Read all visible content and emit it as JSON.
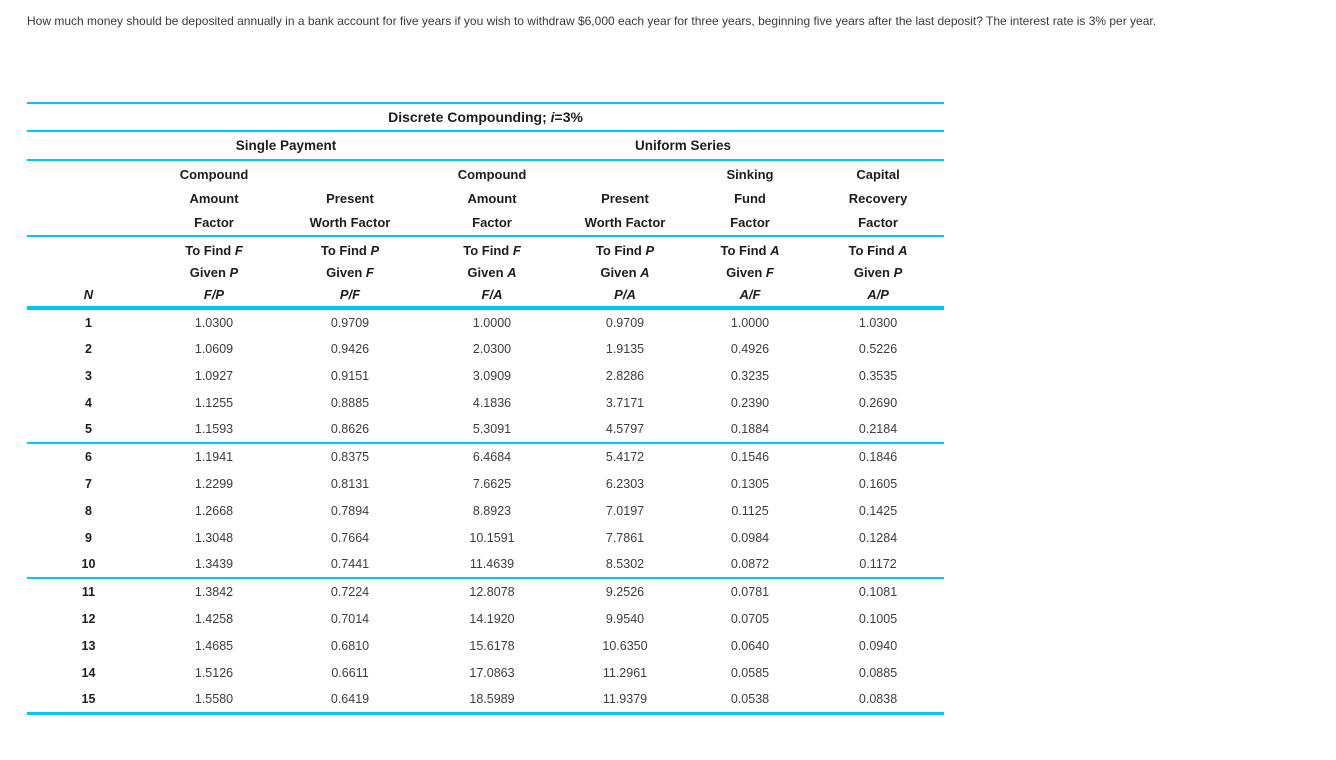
{
  "question": "How much money should be deposited annually in a bank account for five years if you wish to withdraw $6,000 each year for three years, beginning five years after the last deposit? The interest rate is 3% per year.",
  "colors": {
    "rule": "#00c8f0"
  },
  "table": {
    "title": {
      "prefix": "Discrete Compounding; ",
      "var": "i",
      "suffix": "=3%"
    },
    "groups": [
      "Single Payment",
      "Uniform Series"
    ],
    "columns": [
      {
        "symbol": "N",
        "factor": []
      },
      {
        "symbol": "F/P",
        "factor": [
          "Compound",
          "Amount",
          "Factor"
        ],
        "find1": {
          "text": "To Find ",
          "var": "F"
        },
        "find2": {
          "text": "Given ",
          "var": "P"
        }
      },
      {
        "symbol": "P/F",
        "factor": [
          "Present",
          "Worth Factor"
        ],
        "find1": {
          "text": "To Find ",
          "var": "P"
        },
        "find2": {
          "text": "Given ",
          "var": "F"
        }
      },
      {
        "symbol": "F/A",
        "factor": [
          "Compound",
          "Amount",
          "Factor"
        ],
        "find1": {
          "text": "To Find ",
          "var": "F"
        },
        "find2": {
          "text": "Given ",
          "var": "A"
        }
      },
      {
        "symbol": "P/A",
        "factor": [
          "Present",
          "Worth Factor"
        ],
        "find1": {
          "text": "To Find ",
          "var": "P"
        },
        "find2": {
          "text": "Given ",
          "var": "A"
        }
      },
      {
        "symbol": "A/F",
        "factor": [
          "Sinking",
          "Fund",
          "Factor"
        ],
        "find1": {
          "text": "To Find ",
          "var": "A"
        },
        "find2": {
          "text": "Given ",
          "var": "F"
        }
      },
      {
        "symbol": "A/P",
        "factor": [
          "Capital",
          "Recovery",
          "Factor"
        ],
        "find1": {
          "text": "To Find ",
          "var": "A"
        },
        "find2": {
          "text": "Given ",
          "var": "P"
        }
      }
    ],
    "rows": [
      [
        "1",
        "1.0300",
        "0.9709",
        "1.0000",
        "0.9709",
        "1.0000",
        "1.0300"
      ],
      [
        "2",
        "1.0609",
        "0.9426",
        "2.0300",
        "1.9135",
        "0.4926",
        "0.5226"
      ],
      [
        "3",
        "1.0927",
        "0.9151",
        "3.0909",
        "2.8286",
        "0.3235",
        "0.3535"
      ],
      [
        "4",
        "1.1255",
        "0.8885",
        "4.1836",
        "3.7171",
        "0.2390",
        "0.2690"
      ],
      [
        "5",
        "1.1593",
        "0.8626",
        "5.3091",
        "4.5797",
        "0.1884",
        "0.2184"
      ],
      [
        "6",
        "1.1941",
        "0.8375",
        "6.4684",
        "5.4172",
        "0.1546",
        "0.1846"
      ],
      [
        "7",
        "1.2299",
        "0.8131",
        "7.6625",
        "6.2303",
        "0.1305",
        "0.1605"
      ],
      [
        "8",
        "1.2668",
        "0.7894",
        "8.8923",
        "7.0197",
        "0.1125",
        "0.1425"
      ],
      [
        "9",
        "1.3048",
        "0.7664",
        "10.1591",
        "7.7861",
        "0.0984",
        "0.1284"
      ],
      [
        "10",
        "1.3439",
        "0.7441",
        "11.4639",
        "8.5302",
        "0.0872",
        "0.1172"
      ],
      [
        "11",
        "1.3842",
        "0.7224",
        "12.8078",
        "9.2526",
        "0.0781",
        "0.1081"
      ],
      [
        "12",
        "1.4258",
        "0.7014",
        "14.1920",
        "9.9540",
        "0.0705",
        "0.1005"
      ],
      [
        "13",
        "1.4685",
        "0.6810",
        "15.6178",
        "10.6350",
        "0.0640",
        "0.0940"
      ],
      [
        "14",
        "1.5126",
        "0.6611",
        "17.0863",
        "11.2961",
        "0.0585",
        "0.0885"
      ],
      [
        "15",
        "1.5580",
        "0.6419",
        "18.5989",
        "11.9379",
        "0.0538",
        "0.0838"
      ]
    ],
    "group_row_breaks": [
      5,
      10
    ]
  }
}
